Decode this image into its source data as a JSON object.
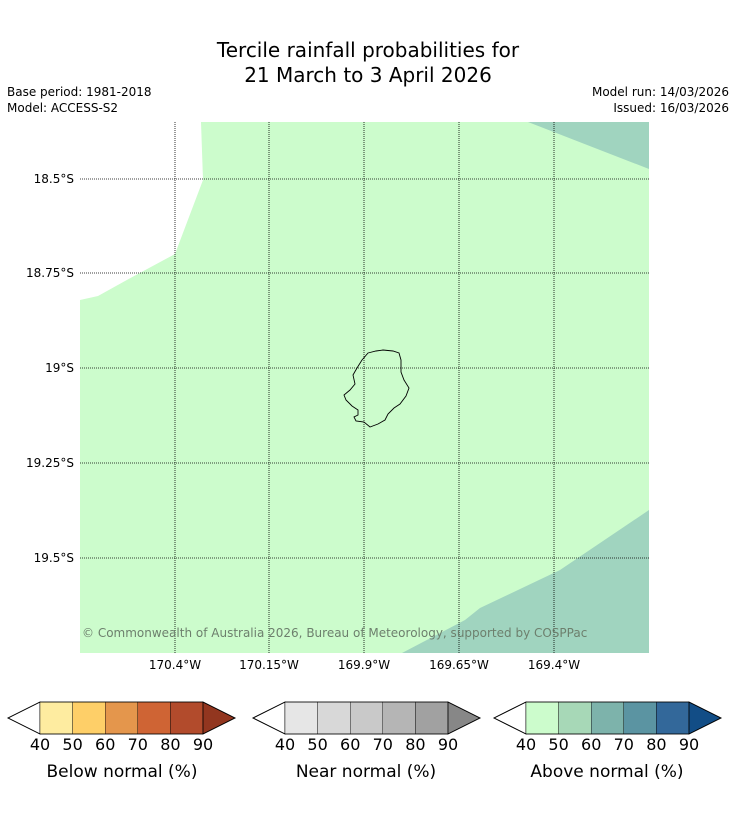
{
  "title_line1": "Tercile rainfall probabilities for",
  "title_line2": "21 March to 3 April 2026",
  "base_period": "Base period: 1981-2018",
  "model": "Model: ACCESS-S2",
  "model_run": "Model run: 14/03/2026",
  "issued": "Issued: 16/03/2026",
  "copyright": "© Commonwealth of Australia 2026, Bureau of Meteorology, supported by COSPPac",
  "map": {
    "lat_labels": [
      "18.5°S",
      "18.75°S",
      "19°S",
      "19.25°S",
      "19.5°S"
    ],
    "lon_labels": [
      "170.4°W",
      "170.15°W",
      "169.9°W",
      "169.65°W",
      "169.4°W"
    ],
    "colors": {
      "above_50": "#ccfccc",
      "above_60": "#a0d4bf"
    }
  },
  "colorbars": [
    {
      "title": "Below normal (%)",
      "ticks": [
        "40",
        "50",
        "60",
        "70",
        "80",
        "90"
      ],
      "colors": [
        "#ffffff",
        "#feeca0",
        "#fecf68",
        "#e4964c",
        "#cf6434",
        "#b24b2c",
        "#92361f"
      ]
    },
    {
      "title": "Near normal (%)",
      "ticks": [
        "40",
        "50",
        "60",
        "70",
        "80",
        "90"
      ],
      "colors": [
        "#ffffff",
        "#e6e6e6",
        "#d8d8d8",
        "#c9c9c9",
        "#b5b5b5",
        "#a1a1a1",
        "#878787"
      ]
    },
    {
      "title": "Above normal (%)",
      "ticks": [
        "40",
        "50",
        "60",
        "70",
        "80",
        "90"
      ],
      "colors": [
        "#ffffff",
        "#ccfccc",
        "#a7d8b7",
        "#7db3ab",
        "#5b94a2",
        "#33689a",
        "#124d86"
      ]
    }
  ]
}
